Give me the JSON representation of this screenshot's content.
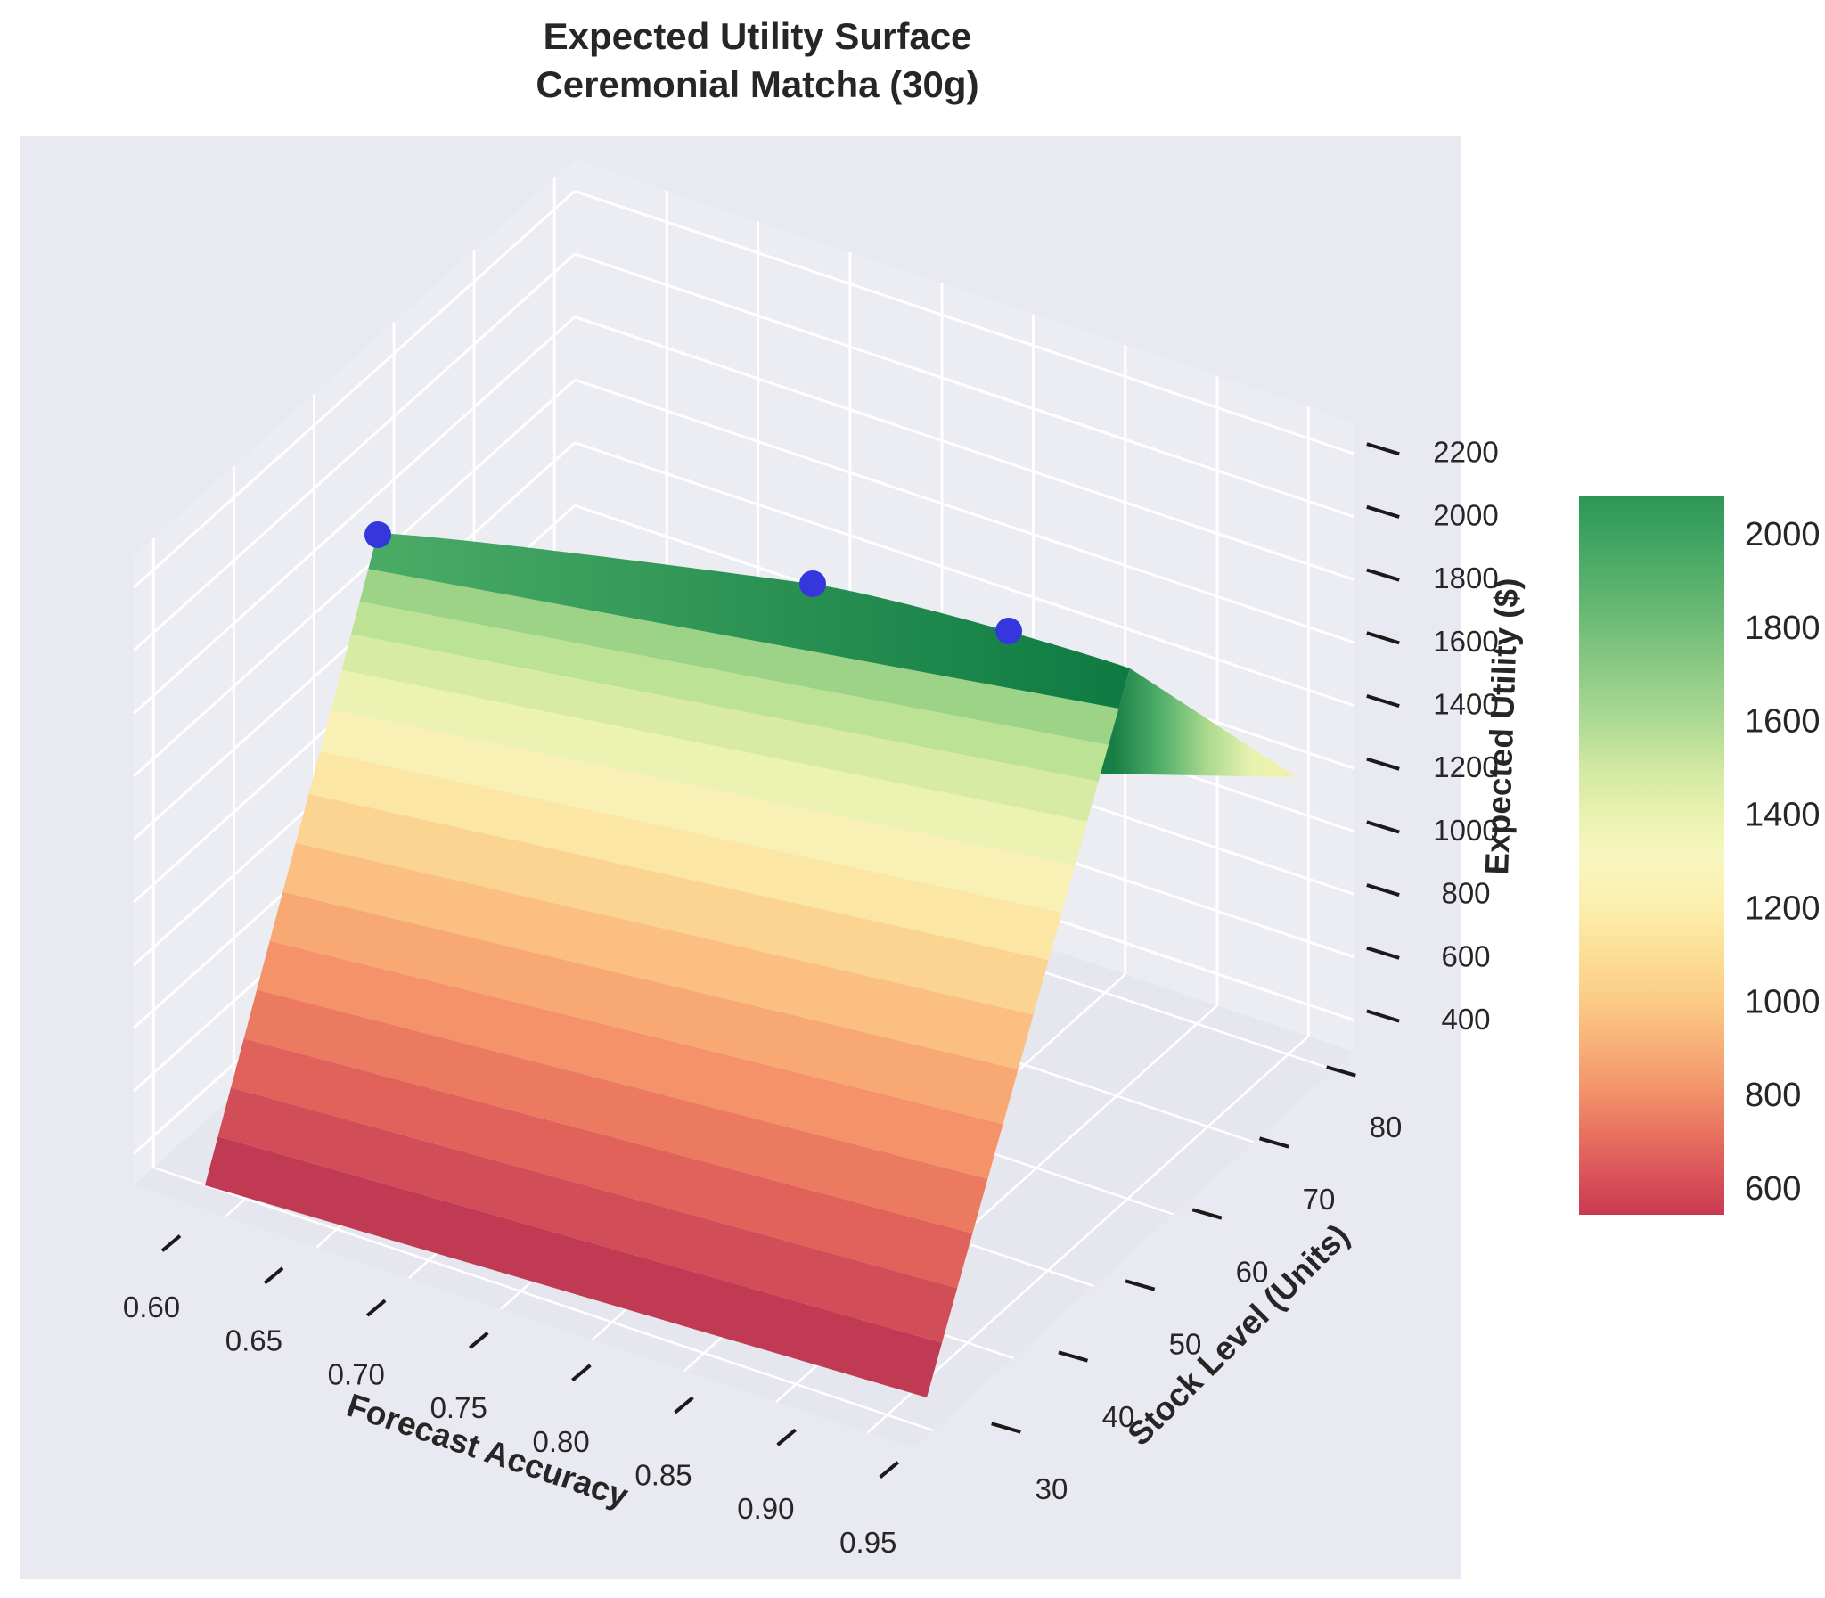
{
  "title": {
    "line1": "Expected Utility Surface",
    "line2": "Ceremonial Matcha (30g)"
  },
  "chart_data": {
    "type": "surface",
    "title": "Expected Utility Surface — Ceremonial Matcha (30g)",
    "xlabel": "Forecast Accuracy",
    "ylabel": "Stock Level (Units)",
    "zlabel": "Expected Utility ($)",
    "x": [
      0.6,
      0.65,
      0.7,
      0.75,
      0.8,
      0.85,
      0.9,
      0.95
    ],
    "y": [
      30,
      35,
      40,
      45,
      50,
      55,
      60,
      65,
      70,
      75,
      80
    ],
    "z": [
      [
        560,
        570,
        580,
        590,
        600,
        610,
        620,
        630
      ],
      [
        705,
        715,
        725,
        735,
        745,
        755,
        765,
        775
      ],
      [
        850,
        860,
        870,
        880,
        890,
        900,
        910,
        920
      ],
      [
        995,
        1005,
        1015,
        1025,
        1035,
        1045,
        1055,
        1065
      ],
      [
        1140,
        1150,
        1160,
        1170,
        1180,
        1190,
        1200,
        1210
      ],
      [
        1285,
        1295,
        1305,
        1315,
        1325,
        1335,
        1345,
        1355
      ],
      [
        1430,
        1440,
        1450,
        1460,
        1470,
        1480,
        1490,
        1500
      ],
      [
        1575,
        1585,
        1595,
        1605,
        1615,
        1625,
        1635,
        1645
      ],
      [
        1720,
        1730,
        1740,
        1750,
        1760,
        1770,
        1780,
        1790
      ],
      [
        1855,
        1865,
        1875,
        1885,
        1895,
        1905,
        1915,
        1925
      ],
      [
        1975,
        1985,
        1995,
        2005,
        2015,
        2025,
        2035,
        1350
      ]
    ],
    "zlim": [
      300,
      2300
    ],
    "x_ticks": [
      "0.60",
      "0.65",
      "0.70",
      "0.75",
      "0.80",
      "0.85",
      "0.90",
      "0.95"
    ],
    "y_ticks": [
      "30",
      "40",
      "50",
      "60",
      "70",
      "80"
    ],
    "z_ticks": [
      "400",
      "600",
      "800",
      "1000",
      "1200",
      "1400",
      "1600",
      "1800",
      "2000",
      "2200"
    ],
    "scatter_points": [
      {
        "accuracy": 0.63,
        "stock": 78,
        "utility": 2005
      },
      {
        "accuracy": 0.77,
        "stock": 78,
        "utility": 2030
      },
      {
        "accuracy": 0.86,
        "stock": 78,
        "utility": 2045
      }
    ],
    "scatter_color": "#3636dd",
    "colormap": "RdYlGn",
    "colorbar_ticks": [
      "2000",
      "1800",
      "1600",
      "1400",
      "1200",
      "1000",
      "800",
      "600"
    ],
    "colorbar_range": [
      544,
      2083
    ],
    "grid": true,
    "panel_background": "#e9e9f1",
    "wall_background": "#ececf3",
    "floor_background": "#e6e6ee",
    "grid_color": "#ffffff",
    "text_color": "#262626",
    "surface_band_colors": [
      "#c13a54",
      "#d14d57",
      "#e0625b",
      "#ec7a61",
      "#f49269",
      "#f8a973",
      "#fabf81",
      "#fcd492",
      "#fce6a4",
      "#f8f0b4",
      "#ecf2b2",
      "#d8eba4",
      "#bce295",
      "#9cd386",
      "#76c177"
    ],
    "ridge_gradient": [
      "#4aab66",
      "#0e7a42"
    ],
    "fold_gradient": [
      "#177f46",
      "#4fae69",
      "#a8d88d",
      "#e8f2b0",
      "#f2f0ac"
    ],
    "colorbar_stops": [
      {
        "offset": 0.0,
        "color": "#2f9656"
      },
      {
        "offset": 0.055,
        "color": "#3da361"
      },
      {
        "offset": 0.18,
        "color": "#71bd78"
      },
      {
        "offset": 0.31,
        "color": "#abd993"
      },
      {
        "offset": 0.375,
        "color": "#cfe8a2"
      },
      {
        "offset": 0.44,
        "color": "#e8f2af"
      },
      {
        "offset": 0.5,
        "color": "#f7f7c0"
      },
      {
        "offset": 0.57,
        "color": "#fcefae"
      },
      {
        "offset": 0.63,
        "color": "#fce098"
      },
      {
        "offset": 0.7,
        "color": "#fbcc86"
      },
      {
        "offset": 0.76,
        "color": "#f8b278"
      },
      {
        "offset": 0.825,
        "color": "#f3946c"
      },
      {
        "offset": 0.89,
        "color": "#e7705f"
      },
      {
        "offset": 0.953,
        "color": "#d84f58"
      },
      {
        "offset": 1.0,
        "color": "#c93a52"
      }
    ]
  }
}
